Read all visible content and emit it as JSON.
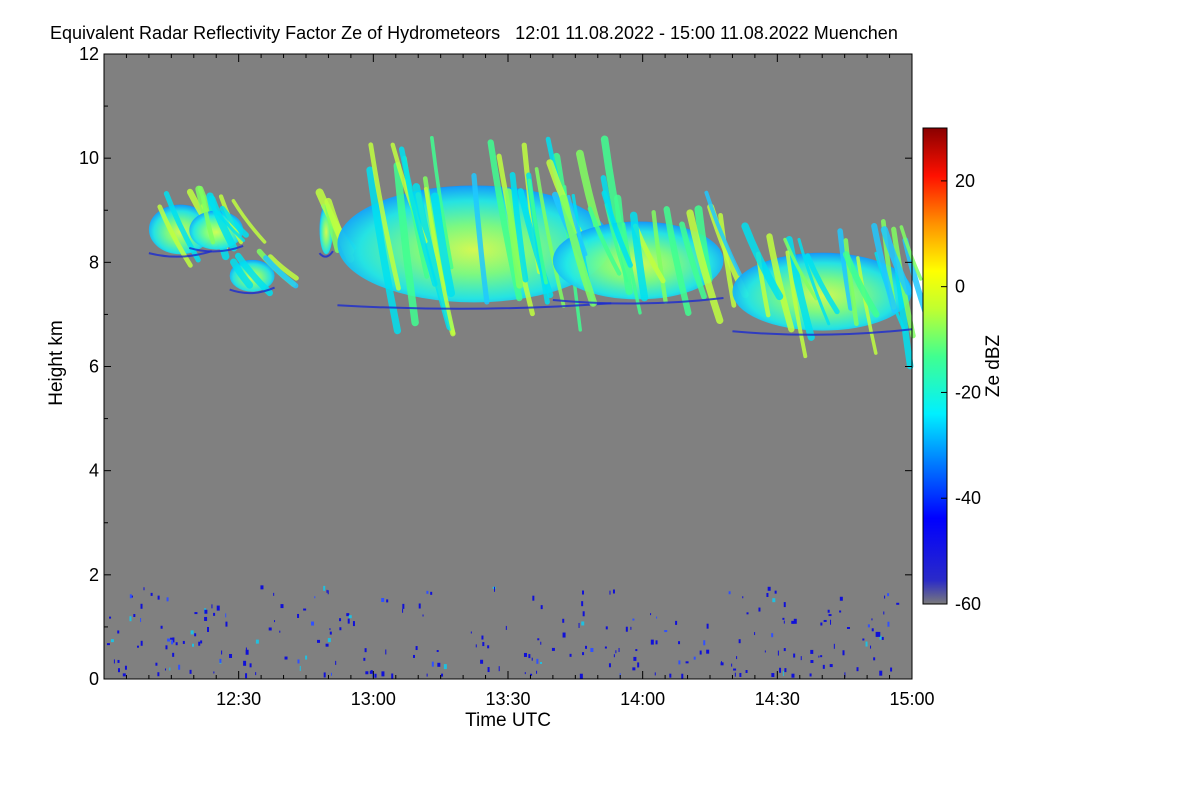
{
  "chart_data": {
    "type": "heatmap",
    "title": "Equivalent Radar Reflectivity Factor Ze of Hydrometeors   12:01 11.08.2022 - 15:00 11.08.2022 Muenchen",
    "xlabel": "Time UTC",
    "ylabel": "Height km",
    "x_ticks": [
      "12:30",
      "13:00",
      "13:30",
      "14:00",
      "14:30",
      "15:00"
    ],
    "x_tick_minutes": [
      30,
      60,
      90,
      120,
      150,
      180
    ],
    "xlim_minutes": [
      0,
      180
    ],
    "y_ticks": [
      "0",
      "2",
      "4",
      "6",
      "8",
      "10",
      "12"
    ],
    "ylim_km": [
      0,
      12
    ],
    "colorbar": {
      "label": "Ze dBZ",
      "ticks": [
        "-60",
        "-40",
        "-20",
        "0",
        "20"
      ],
      "range": [
        -60,
        30
      ]
    },
    "background_color": "#808080",
    "cloud_layers": [
      {
        "t": [
          10,
          24
        ],
        "h": [
          8.1,
          9.5
        ]
      },
      {
        "t": [
          19,
          31
        ],
        "h": [
          8.2,
          9.3
        ]
      },
      {
        "t": [
          28,
          38
        ],
        "h": [
          7.4,
          8.3
        ]
      },
      {
        "t": [
          48,
          51
        ],
        "h": [
          8.1,
          9.5
        ]
      },
      {
        "t": [
          52,
          113
        ],
        "h": [
          7.1,
          10.4
        ]
      },
      {
        "t": [
          100,
          138
        ],
        "h": [
          7.2,
          9.4
        ]
      },
      {
        "t": [
          140,
          182
        ],
        "h": [
          6.6,
          8.8
        ]
      }
    ],
    "low_echoes": {
      "t": [
        0,
        180
      ],
      "h": [
        0.1,
        1.8
      ]
    }
  }
}
